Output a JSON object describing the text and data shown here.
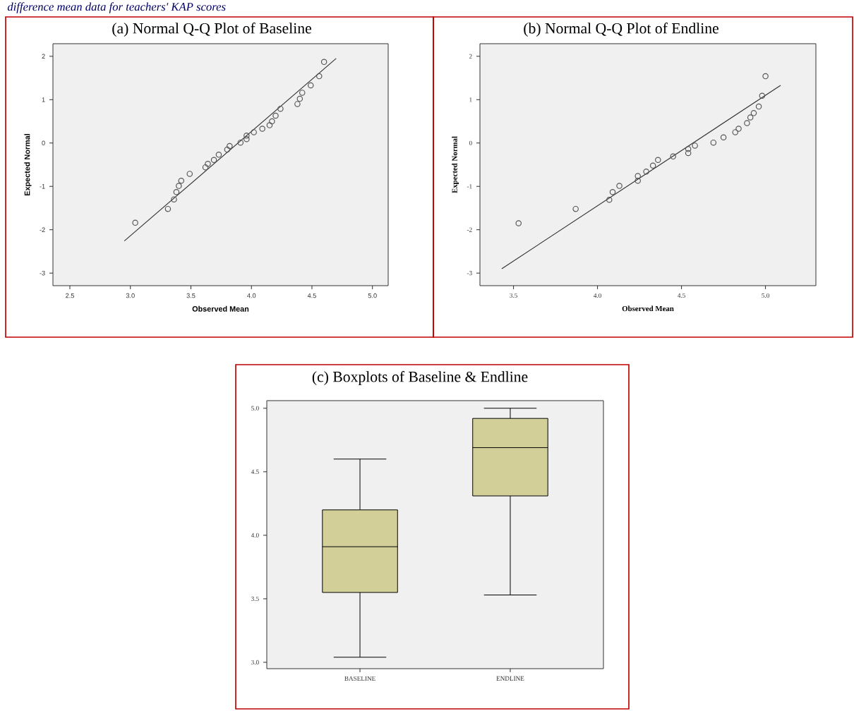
{
  "chart_data": [
    {
      "type": "scatter",
      "title": "(a)  Normal Q-Q Plot of Baseline",
      "xlabel": "Observed Mean",
      "ylabel": "Expected Normal",
      "annotations": [
        "difference mean data for teachers' KAP scores"
      ],
      "xlim": [
        2.36,
        5.13
      ],
      "ylim": [
        -3.29,
        2.29
      ],
      "xticks": [
        2.5,
        {
          "value": 3,
          "label": "3.0"
        },
        3.5,
        {
          "value": 4,
          "label": "4.0"
        },
        4.5,
        {
          "value": 5,
          "label": "5.0"
        }
      ],
      "yticks": [
        -3,
        -2,
        -1,
        0,
        1,
        2
      ],
      "series": [
        {
          "type": "scatter",
          "marker": "circle",
          "color": "#555555",
          "x": [
            3.04,
            3.31,
            3.36,
            3.38,
            3.4,
            3.42,
            3.49,
            3.62,
            3.64,
            3.69,
            3.73,
            3.8,
            3.82,
            3.91,
            3.96,
            3.96,
            4.02,
            4.09,
            4.15,
            4.17,
            4.2,
            4.24,
            4.38,
            4.4,
            4.42,
            4.49,
            4.56,
            4.6
          ],
          "values": [
            -1.84,
            -1.52,
            -1.3,
            -1.13,
            -0.99,
            -0.87,
            -0.71,
            -0.56,
            -0.48,
            -0.39,
            -0.27,
            -0.15,
            -0.07,
            0.01,
            0.09,
            0.17,
            0.25,
            0.33,
            0.41,
            0.5,
            0.63,
            0.79,
            0.9,
            1.02,
            1.16,
            1.33,
            1.54,
            1.87
          ]
        },
        {
          "type": "line",
          "color": "#333333",
          "x": [
            2.95,
            4.7
          ],
          "values": [
            -2.26,
            1.95
          ]
        }
      ]
    },
    {
      "type": "scatter",
      "title": "(b)  Normal Q-Q Plot of Endline",
      "xlabel": "Observed Mean",
      "ylabel": "Expected Normal",
      "xlim": [
        3.3,
        5.3
      ],
      "ylim": [
        -3.29,
        2.29
      ],
      "xticks": [
        3.5,
        {
          "value": 4,
          "label": "4.0"
        },
        4.5,
        {
          "value": 5,
          "label": "5.0"
        }
      ],
      "yticks": [
        -3,
        -2,
        -1,
        0,
        1,
        2
      ],
      "series": [
        {
          "type": "scatter",
          "marker": "circle",
          "color": "#555555",
          "x": [
            3.53,
            3.87,
            4.07,
            4.09,
            4.13,
            4.24,
            4.24,
            4.29,
            4.33,
            4.36,
            4.45,
            4.54,
            4.54,
            4.58,
            4.69,
            4.75,
            4.82,
            4.84,
            4.89,
            4.91,
            4.93,
            4.96,
            4.98,
            5.0
          ],
          "values": [
            -1.85,
            -1.52,
            -1.31,
            -1.13,
            -0.99,
            -0.87,
            -0.76,
            -0.66,
            -0.52,
            -0.39,
            -0.31,
            -0.23,
            -0.14,
            -0.06,
            0.01,
            0.13,
            0.25,
            0.33,
            0.46,
            0.59,
            0.69,
            0.84,
            1.09,
            1.54
          ]
        },
        {
          "type": "line",
          "color": "#333333",
          "x": [
            3.43,
            5.09
          ],
          "values": [
            -2.9,
            1.33
          ]
        }
      ]
    },
    {
      "type": "box",
      "title": "(c)  Boxplots of Baseline & Endline",
      "categories": [
        "BASELINE",
        "ENDLINE"
      ],
      "color": "#d3cf98",
      "ylim": [
        2.95,
        5.06
      ],
      "yticks": [
        {
          "value": 3,
          "label": "3.0"
        },
        3.5,
        {
          "value": 4,
          "label": "4.0"
        },
        4.5,
        {
          "value": 5,
          "label": "5.0"
        }
      ],
      "boxes": [
        {
          "low": 3.04,
          "q1": 3.55,
          "median": 3.91,
          "q3": 4.2,
          "high": 4.6
        },
        {
          "low": 3.53,
          "q1": 4.31,
          "median": 4.69,
          "q3": 4.92,
          "high": 5.0
        }
      ]
    }
  ]
}
